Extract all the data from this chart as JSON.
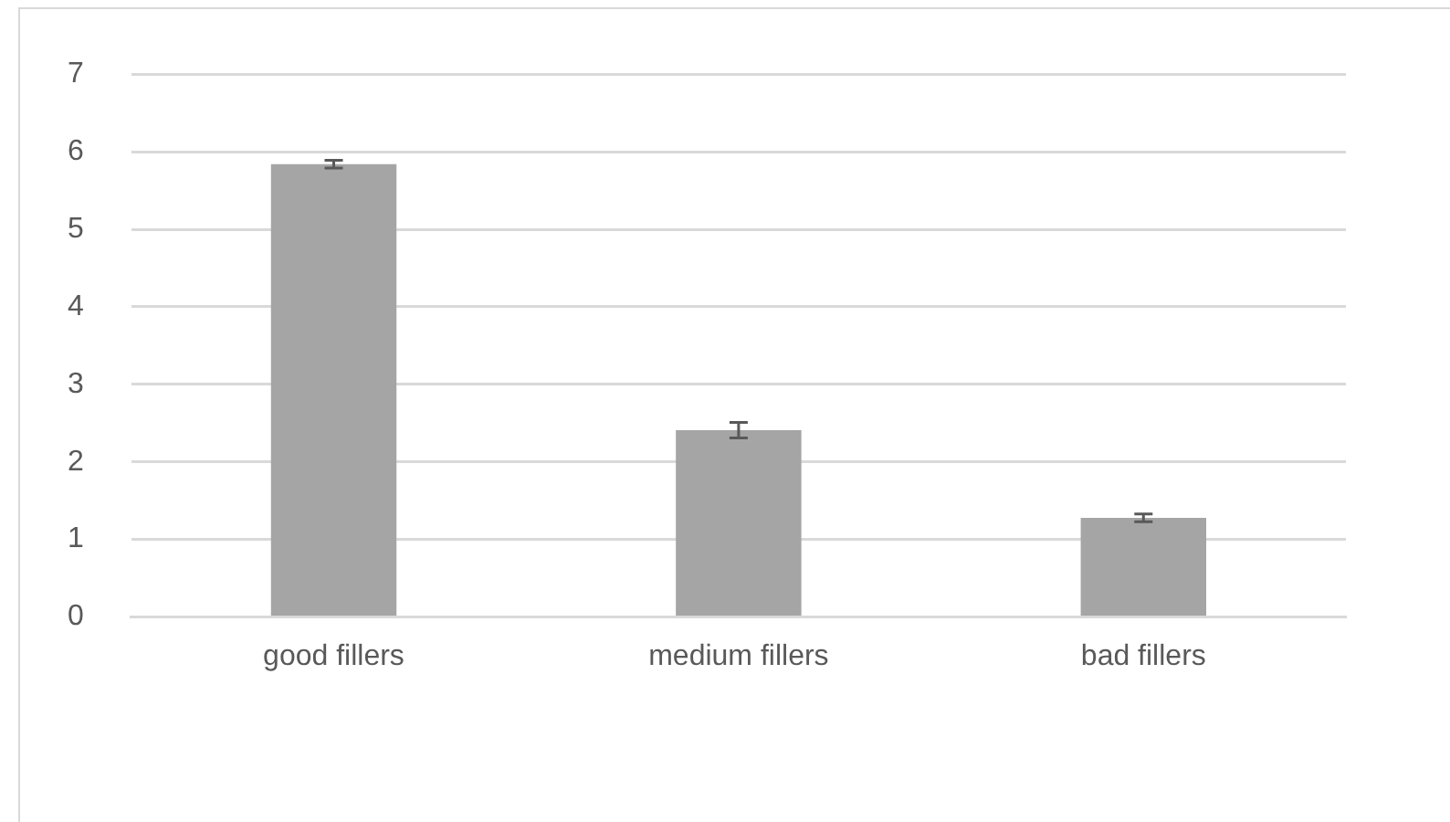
{
  "chart_data": {
    "type": "bar",
    "categories": [
      "good fillers",
      "medium fillers",
      "bad fillers"
    ],
    "values": [
      5.84,
      2.41,
      1.28
    ],
    "errors": [
      0.05,
      0.1,
      0.05
    ],
    "color": "#a5a5a5",
    "ylim": [
      0,
      7
    ],
    "yticks": [
      0,
      1,
      2,
      3,
      4,
      5,
      6,
      7
    ],
    "grid": "y"
  }
}
